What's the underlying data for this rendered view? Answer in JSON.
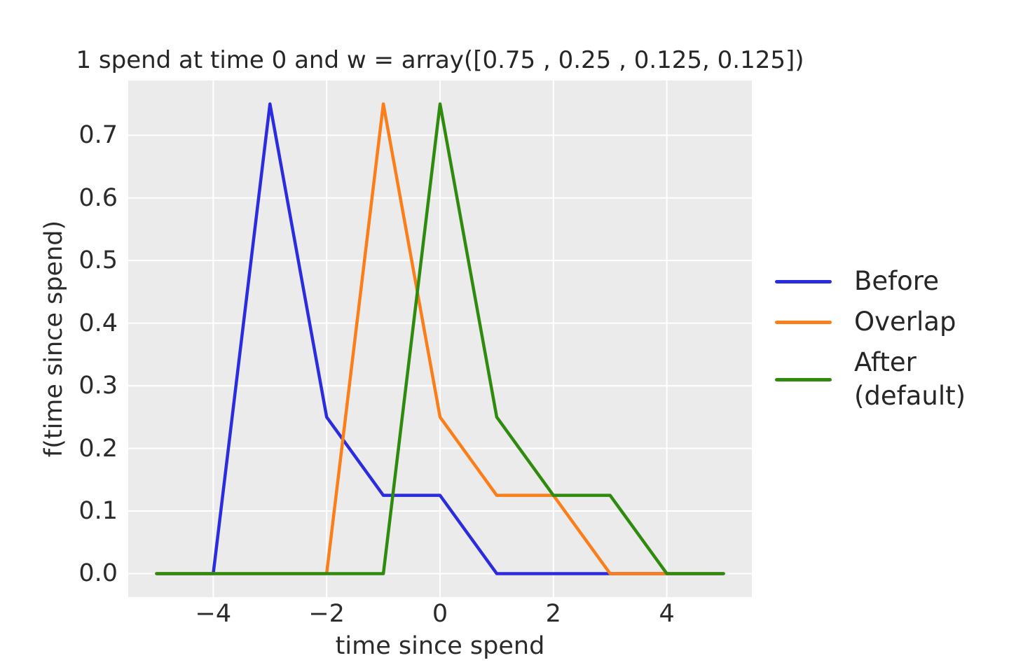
{
  "chart_data": {
    "type": "line",
    "title": "1 spend at time 0 and w = array([0.75 , 0.25 , 0.125, 0.125])",
    "xlabel": "time since spend",
    "ylabel": "f(time since spend)",
    "x": [
      -5,
      -4,
      -3,
      -2,
      -1,
      0,
      1,
      2,
      3,
      4,
      5
    ],
    "series": [
      {
        "name": "Before",
        "label_lines": [
          "Before"
        ],
        "color": "#2b2bdf",
        "values": [
          0,
          0,
          0.75,
          0.25,
          0.125,
          0.125,
          0,
          0,
          0,
          0,
          0
        ]
      },
      {
        "name": "Overlap",
        "label_lines": [
          "Overlap"
        ],
        "color": "#fa7e19",
        "values": [
          0,
          0,
          0,
          0,
          0.75,
          0.25,
          0.125,
          0.125,
          0,
          0,
          0
        ]
      },
      {
        "name": "After (default)",
        "label_lines": [
          "After",
          "(default)"
        ],
        "color": "#2f8b0e",
        "values": [
          0,
          0,
          0,
          0,
          0,
          0.75,
          0.25,
          0.125,
          0.125,
          0,
          0
        ]
      }
    ],
    "xlim": [
      -5.5,
      5.5
    ],
    "ylim": [
      -0.0375,
      0.7875
    ],
    "xticks": [
      -4,
      -2,
      0,
      2,
      4
    ],
    "xtick_labels": [
      "−4",
      "−2",
      "0",
      "2",
      "4"
    ],
    "yticks": [
      0.0,
      0.1,
      0.2,
      0.3,
      0.4,
      0.5,
      0.6,
      0.7
    ],
    "ytick_labels": [
      "0.0",
      "0.1",
      "0.2",
      "0.3",
      "0.4",
      "0.5",
      "0.6",
      "0.7"
    ],
    "grid": true,
    "legend_position": "right of axes",
    "plot_bg": "#ebebeb",
    "grid_color": "#ffffff",
    "text_color": "#2b2b2b",
    "line_width": 4.5
  }
}
